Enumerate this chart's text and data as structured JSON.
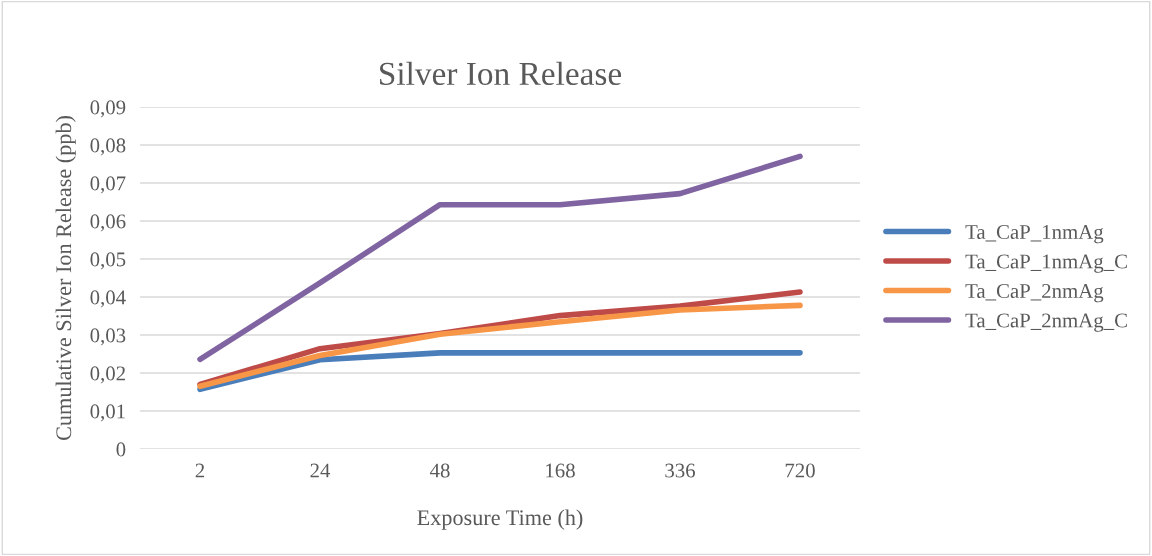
{
  "chart_data": {
    "type": "line",
    "title": "Silver Ion Release",
    "xlabel": "Exposure Time (h)",
    "ylabel": "Cumulative Silver Ion Release (ppb)",
    "categories": [
      "2",
      "24",
      "48",
      "168",
      "336",
      "720"
    ],
    "series": [
      {
        "name": "Ta_CaP_1nmAg",
        "color": "#4a7ebb",
        "values": [
          0.0157,
          0.0235,
          0.0253,
          0.0253,
          0.0253,
          0.0253
        ]
      },
      {
        "name": "Ta_CaP_1nmAg_C",
        "color": "#be4b48",
        "values": [
          0.017,
          0.0264,
          0.0304,
          0.0351,
          0.0376,
          0.0413
        ]
      },
      {
        "name": "Ta_CaP_2nmAg",
        "color": "#f79646",
        "values": [
          0.0165,
          0.0246,
          0.0302,
          0.0335,
          0.0366,
          0.0378
        ]
      },
      {
        "name": "Ta_CaP_2nmAg_C",
        "color": "#8064a2",
        "values": [
          0.0236,
          0.0437,
          0.0643,
          0.0643,
          0.0672,
          0.077
        ]
      }
    ],
    "ylim": [
      0,
      0.09
    ],
    "yticks": [
      {
        "value": 0,
        "label": "0"
      },
      {
        "value": 0.01,
        "label": "0,01"
      },
      {
        "value": 0.02,
        "label": "0,02"
      },
      {
        "value": 0.03,
        "label": "0,03"
      },
      {
        "value": 0.04,
        "label": "0,04"
      },
      {
        "value": 0.05,
        "label": "0,05"
      },
      {
        "value": 0.06,
        "label": "0,06"
      },
      {
        "value": 0.07,
        "label": "0,07"
      },
      {
        "value": 0.08,
        "label": "0,08"
      },
      {
        "value": 0.09,
        "label": "0,09"
      }
    ],
    "grid": "y",
    "legend": "right",
    "marker": "none",
    "line_style": "solid"
  }
}
